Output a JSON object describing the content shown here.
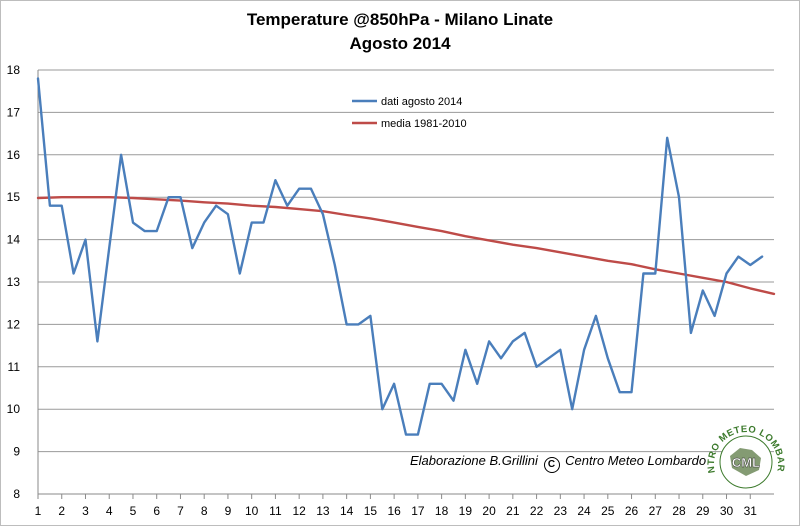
{
  "chart_data": {
    "type": "line",
    "title": "Temperature  @850hPa - Milano Linate",
    "subtitle": "Agosto 2014",
    "xlabel": "",
    "ylabel": "",
    "ylim": [
      8,
      18
    ],
    "yticks": [
      8,
      9,
      10,
      11,
      12,
      13,
      14,
      15,
      16,
      17,
      18
    ],
    "xlim": [
      1,
      32
    ],
    "xticks": [
      1,
      2,
      3,
      4,
      5,
      6,
      7,
      8,
      9,
      10,
      11,
      12,
      13,
      14,
      15,
      16,
      17,
      18,
      19,
      20,
      21,
      22,
      23,
      24,
      25,
      26,
      27,
      28,
      29,
      30,
      31
    ],
    "grid": "horizontal",
    "legend_position": "top-center",
    "series": [
      {
        "name": "dati agosto 2014",
        "color": "#4a7ebb",
        "x": [
          1,
          1.5,
          2,
          2.5,
          3,
          3.5,
          4,
          4.5,
          5,
          5.5,
          6,
          6.5,
          7,
          7.5,
          8,
          8.5,
          9,
          9.5,
          10,
          10.5,
          11,
          11.5,
          12,
          12.5,
          13,
          13.5,
          14,
          14.5,
          15,
          15.5,
          16,
          16.5,
          17,
          17.5,
          18,
          18.5,
          19,
          19.5,
          20,
          20.5,
          21,
          21.5,
          22,
          22.5,
          23,
          23.5,
          24,
          24.5,
          25,
          25.5,
          26,
          26.5,
          27,
          27.5,
          28,
          28.5,
          29,
          29.5,
          30,
          30.5,
          31,
          31.5
        ],
        "y": [
          17.8,
          14.8,
          14.8,
          13.2,
          14.0,
          11.6,
          13.8,
          16.0,
          14.4,
          14.2,
          14.2,
          15.0,
          15.0,
          13.8,
          14.4,
          14.8,
          14.6,
          13.2,
          14.4,
          14.4,
          15.4,
          14.8,
          15.2,
          15.2,
          14.6,
          13.4,
          12.0,
          12.0,
          12.2,
          10.0,
          10.6,
          9.4,
          9.4,
          10.6,
          10.6,
          10.2,
          11.4,
          10.6,
          11.6,
          11.2,
          11.6,
          11.8,
          11.0,
          11.2,
          11.4,
          10.0,
          11.4,
          12.2,
          11.2,
          10.4,
          10.4,
          13.2,
          13.2,
          16.4,
          15.0,
          11.8,
          12.8,
          12.2,
          13.2,
          13.6,
          13.4,
          13.6
        ]
      },
      {
        "name": "media 1981-2010",
        "color": "#be4b48",
        "x": [
          1,
          2,
          3,
          4,
          5,
          6,
          7,
          8,
          9,
          10,
          11,
          12,
          13,
          14,
          15,
          16,
          17,
          18,
          19,
          20,
          21,
          22,
          23,
          24,
          25,
          26,
          27,
          28,
          29,
          30,
          31,
          32
        ],
        "y": [
          14.98,
          15.0,
          15.0,
          15.0,
          14.98,
          14.95,
          14.92,
          14.88,
          14.85,
          14.8,
          14.77,
          14.72,
          14.67,
          14.58,
          14.5,
          14.4,
          14.3,
          14.2,
          14.08,
          13.98,
          13.88,
          13.8,
          13.7,
          13.6,
          13.5,
          13.42,
          13.3,
          13.2,
          13.1,
          13.0,
          12.85,
          12.72
        ]
      }
    ],
    "annotation": "Elaborazione B.Grillini",
    "annotation_symbol": "C",
    "annotation_org": "Centro Meteo Lombardo"
  },
  "logo": {
    "text": "CENTRO METEO LOMBARDO",
    "abbr": "CML",
    "color": "#3c7a2c"
  }
}
